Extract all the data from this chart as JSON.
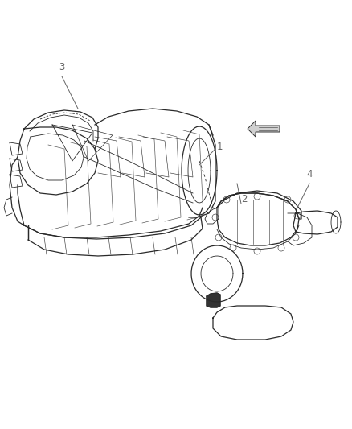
{
  "background_color": "#ffffff",
  "fig_width": 4.38,
  "fig_height": 5.33,
  "dpi": 100,
  "image_data": ""
}
